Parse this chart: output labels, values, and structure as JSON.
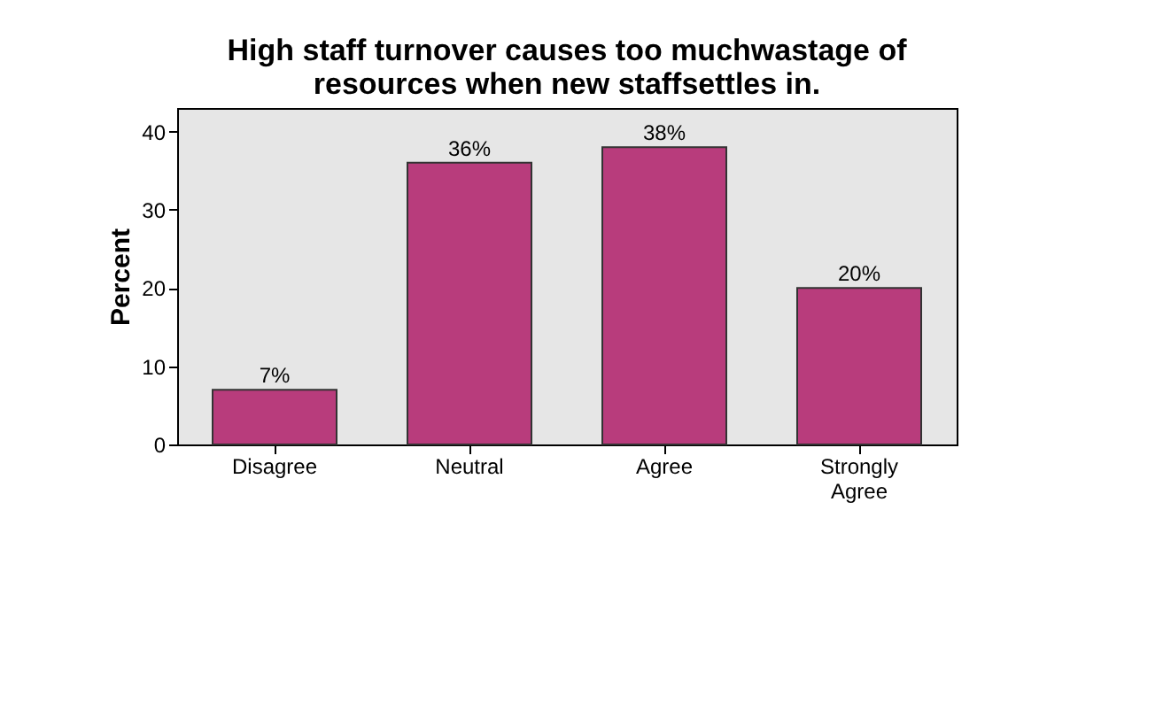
{
  "chart_data": {
    "type": "bar",
    "title": [
      "High staff turnover causes too muchwastage of",
      "resources when new staffsettles in."
    ],
    "ylabel": "Percent",
    "categories": [
      "Disagree",
      "Neutral",
      "Agree",
      "Strongly Agree"
    ],
    "values": [
      7,
      36,
      38,
      20
    ],
    "value_labels": [
      "7%",
      "36%",
      "38%",
      "20%"
    ],
    "color": "#b83c7c",
    "ylim": [
      0,
      43
    ],
    "yticks": [
      0,
      10,
      20,
      30,
      40
    ],
    "grid": false
  }
}
